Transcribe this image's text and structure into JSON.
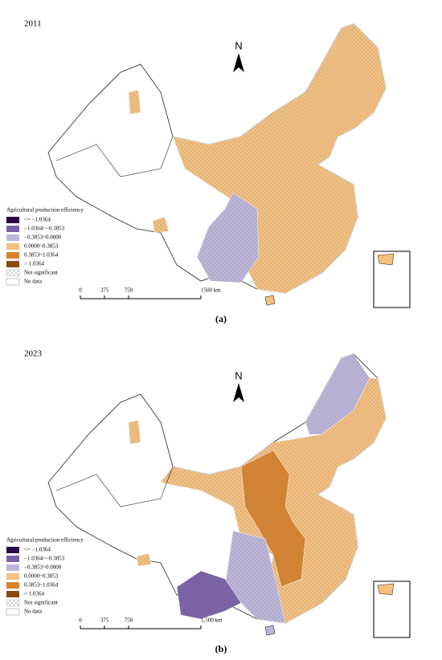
{
  "panels": [
    {
      "year": "2011",
      "north": "N",
      "legend": {
        "title": "Agricultural production efficiency",
        "items": [
          {
            "label": "<= −1.0364",
            "color": "#2a0a45"
          },
          {
            "label": "−1.0364~−0.3853",
            "color": "#7b5ea7"
          },
          {
            "label": "−0.3853~0.0000",
            "color": "#bdb5da"
          },
          {
            "label": "0.0000~0.3853",
            "color": "#f5c07e"
          },
          {
            "label": "0.3853~1.0364",
            "color": "#d9822b"
          },
          {
            "label": "> 1.0364",
            "color": "#8a4a10"
          }
        ],
        "not_significant": "Not significant",
        "no_data": "No data"
      },
      "scale": [
        "0",
        "375",
        "750",
        "1500 km"
      ],
      "caption": "(a)"
    },
    {
      "year": "2023",
      "north": "N",
      "legend": {
        "title": "Agricultural production efficiency",
        "items": [
          {
            "label": "<= −1.0364",
            "color": "#2a0a45"
          },
          {
            "label": "−1.0364~−0.3853",
            "color": "#7b5ea7"
          },
          {
            "label": "−0.3853~0.0000",
            "color": "#bdb5da"
          },
          {
            "label": "0.0000~0.3853",
            "color": "#f5c07e"
          },
          {
            "label": "0.3853~1.0364",
            "color": "#d9822b"
          },
          {
            "label": "> 1.0364",
            "color": "#8a4a10"
          }
        ],
        "not_significant": "Not significant",
        "no_data": "No data"
      },
      "scale": [
        "0",
        "375",
        "750",
        "1,500 km"
      ],
      "caption": "(b)"
    }
  ]
}
